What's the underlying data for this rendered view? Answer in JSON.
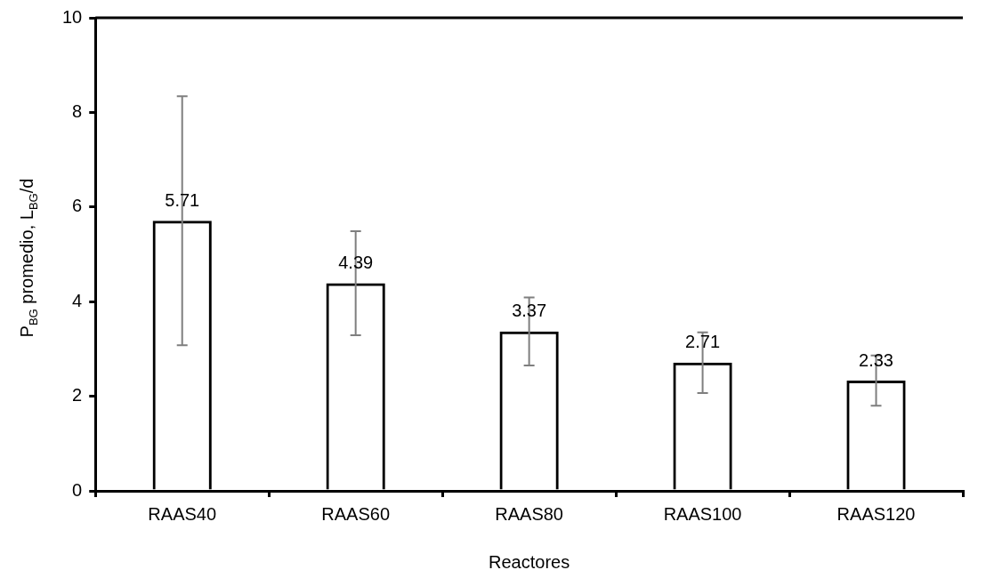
{
  "chart_data": {
    "type": "bar",
    "xlabel": "Reactores",
    "ylabel": "P$_{BG}$ promedio, L$_{BG}$/d",
    "categories": [
      "RAAS40",
      "RAAS60",
      "RAAS80",
      "RAAS100",
      "RAAS120"
    ],
    "values": [
      5.71,
      4.39,
      3.37,
      2.71,
      2.33
    ],
    "errors": [
      2.63,
      1.1,
      0.72,
      0.64,
      0.53
    ],
    "color": "#000000",
    "ylim": [
      0,
      10
    ],
    "yticks": [
      0,
      2,
      4,
      6,
      8,
      10
    ],
    "grid": false,
    "legend": false,
    "data_labels": true
  }
}
